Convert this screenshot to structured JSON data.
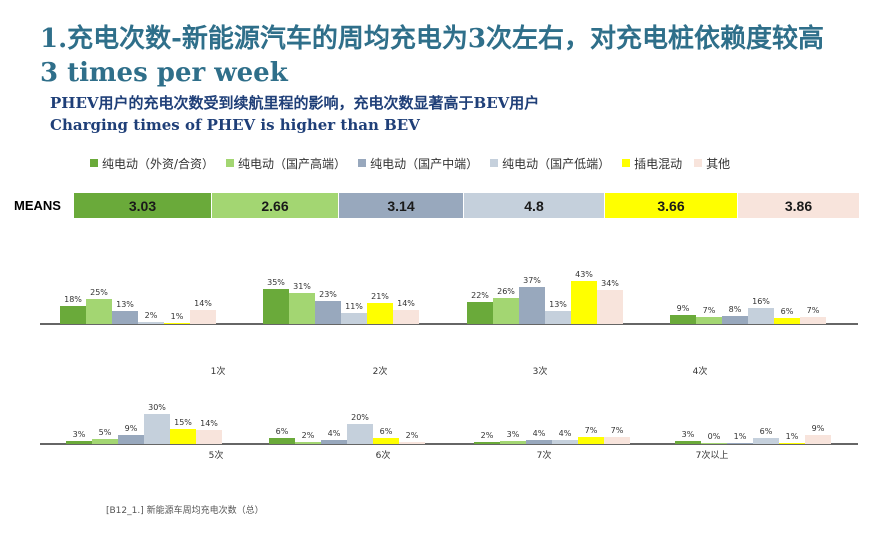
{
  "title_line1": "1.充电次数-新能源汽车的周均充电为3次左右，对充电桩依赖度较高",
  "title_line2": "3 times per week",
  "subtitle_line1": "PHEV用户的充电次数受到续航里程的影响，充电次数显著高于BEV用户",
  "subtitle_line2": "Charging times of PHEV is higher than BEV",
  "means": {
    "label": "MEANS",
    "values": [
      "3.03",
      "2.66",
      "3.14",
      "4.8",
      "3.66",
      "3.86"
    ]
  },
  "footnote": "[B12_1.]  新能源车周均充电次数（总）",
  "chart_data": {
    "type": "bar",
    "title": "新能源车周均充电次数（总）",
    "unit": "%",
    "categories": [
      "1次",
      "2次",
      "3次",
      "4次",
      "5次",
      "6次",
      "7次",
      "7次以上"
    ],
    "series": [
      {
        "name": "纯电动（外资/合资）",
        "color": "#6aaa3a",
        "values": [
          18,
          35,
          22,
          9,
          3,
          6,
          2,
          3
        ]
      },
      {
        "name": "纯电动（国产高端）",
        "color": "#a3d672",
        "values": [
          25,
          31,
          26,
          7,
          5,
          2,
          3,
          0
        ]
      },
      {
        "name": "纯电动（国产中端）",
        "color": "#98a8bd",
        "values": [
          13,
          23,
          37,
          8,
          9,
          4,
          4,
          1
        ]
      },
      {
        "name": "纯电动（国产低端）",
        "color": "#c5d0dc",
        "values": [
          2,
          11,
          13,
          16,
          30,
          20,
          4,
          6
        ]
      },
      {
        "name": "插电混动",
        "color": "#ffff00",
        "values": [
          1,
          21,
          43,
          6,
          15,
          6,
          7,
          1
        ]
      },
      {
        "name": "其他",
        "color": "#f8e4dc",
        "values": [
          14,
          14,
          34,
          7,
          14,
          2,
          7,
          9
        ]
      }
    ],
    "means": [
      3.03,
      2.66,
      3.14,
      4.8,
      3.66,
      3.86
    ],
    "ylim": [
      0,
      45
    ],
    "xlabel": "",
    "ylabel": ""
  }
}
